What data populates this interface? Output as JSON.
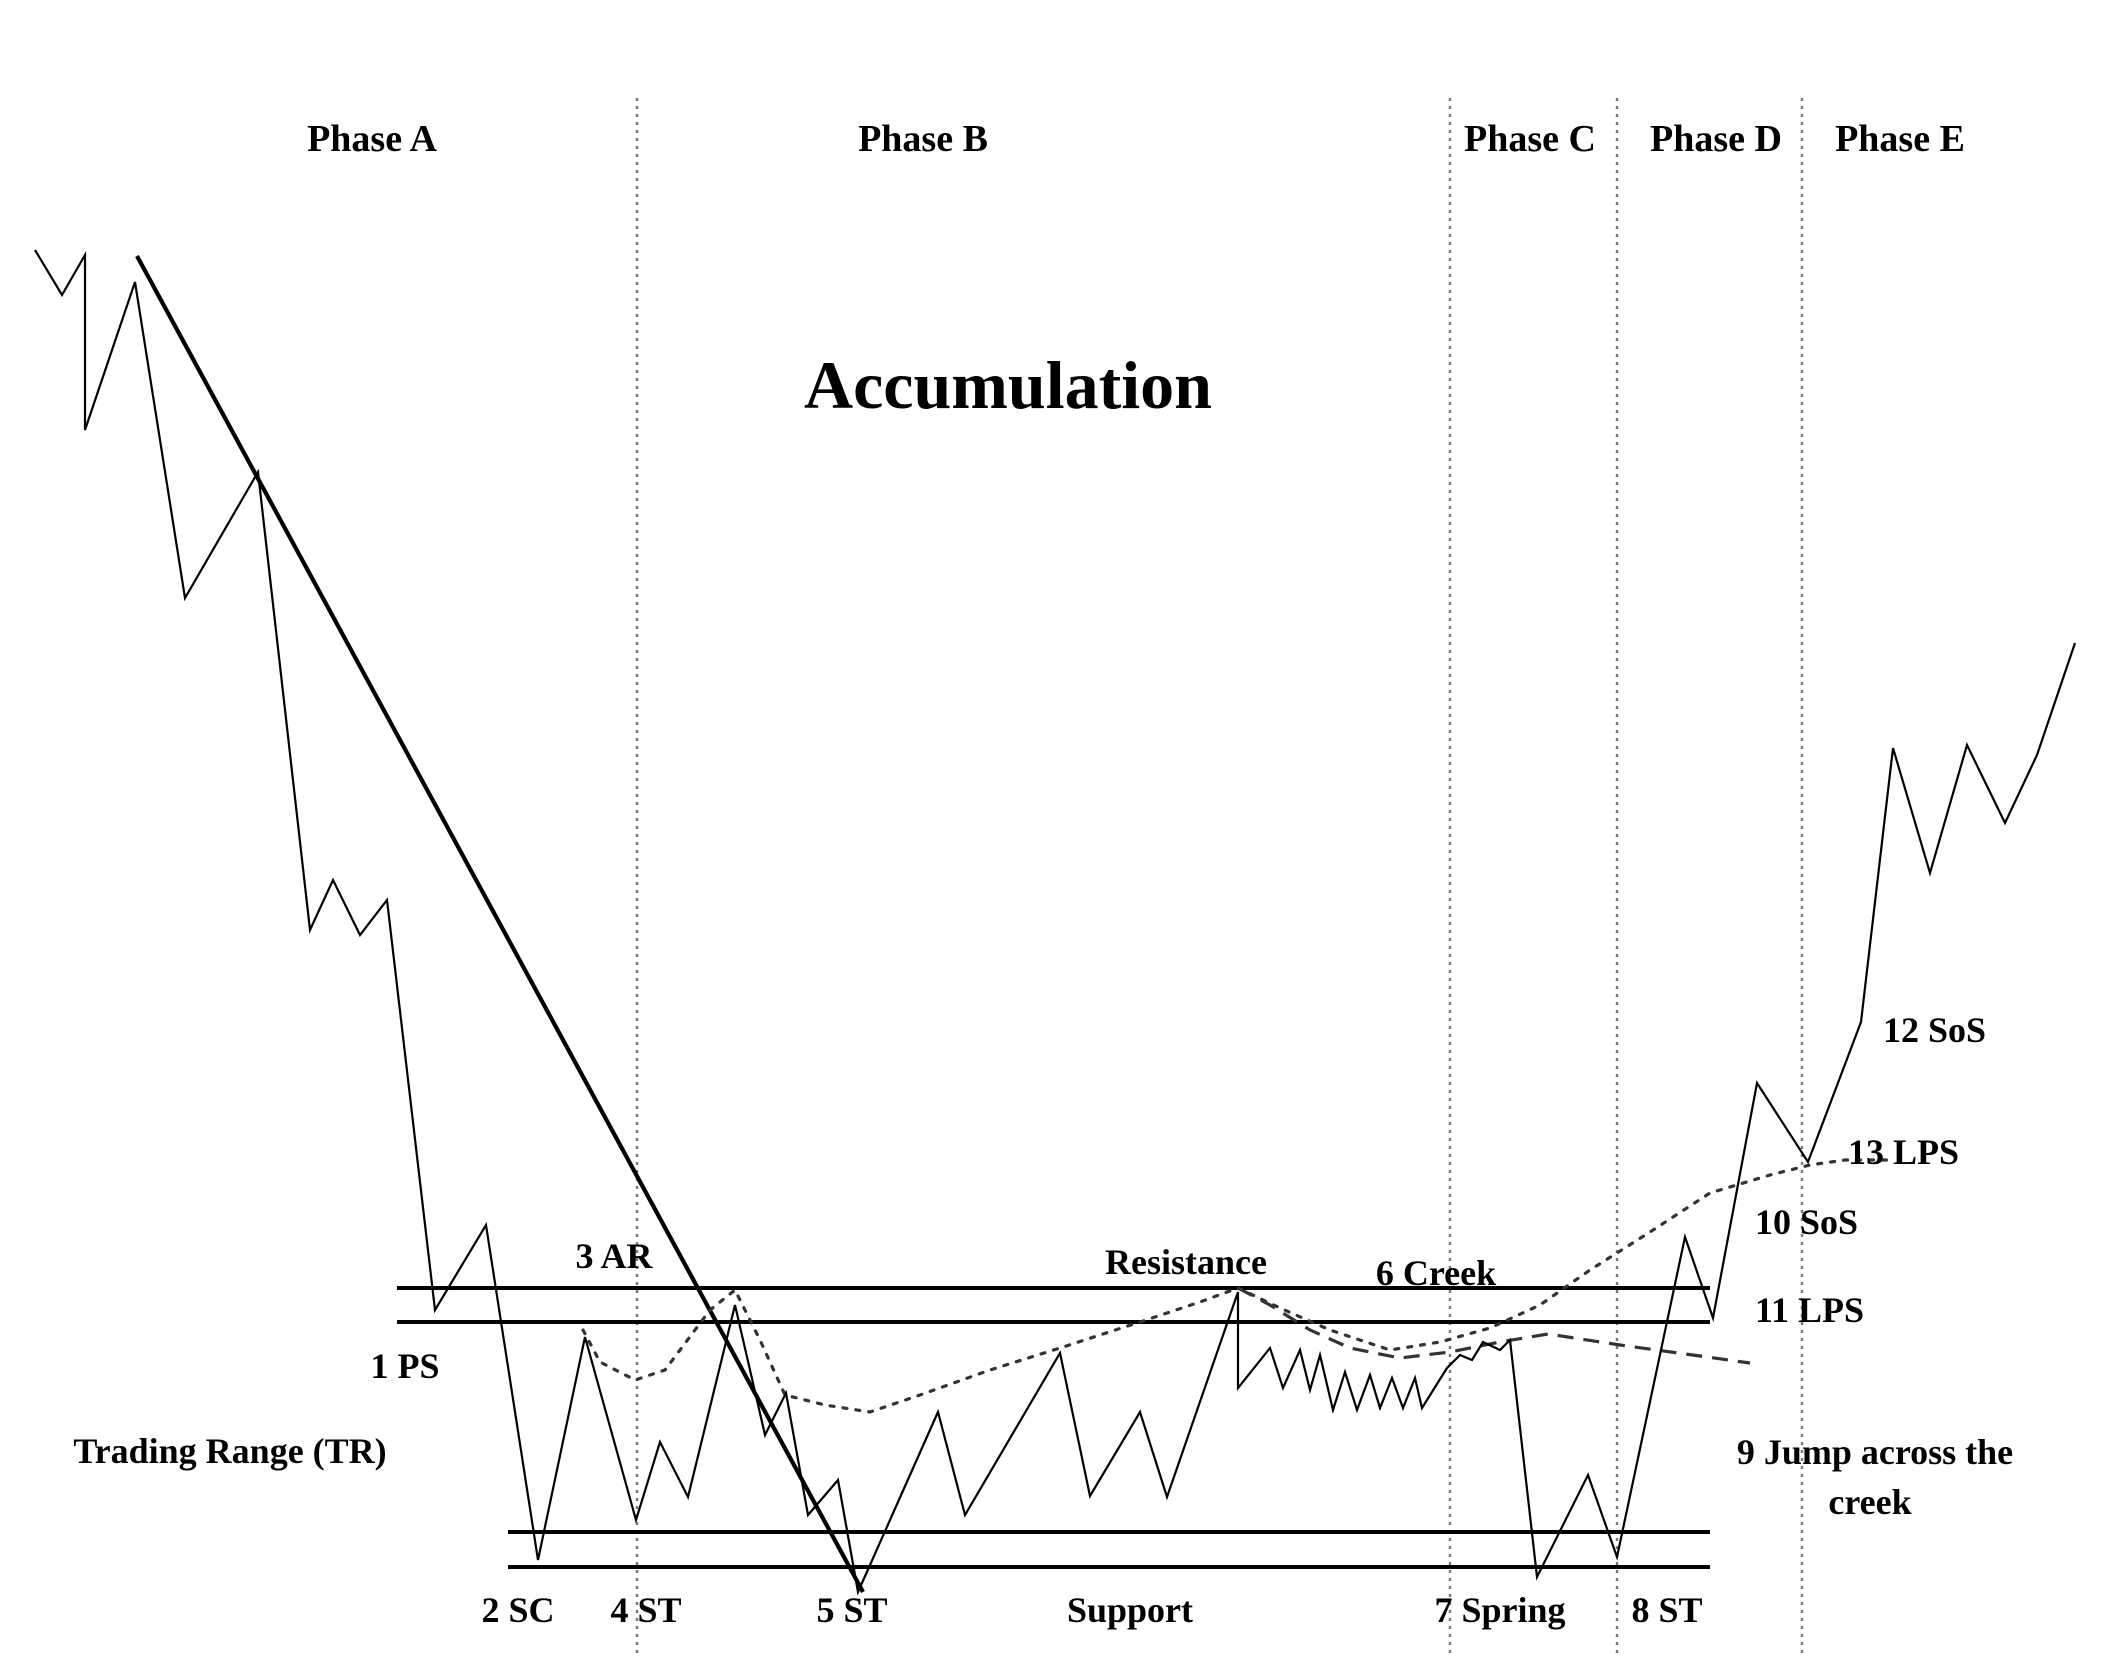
{
  "title": "Accumulation",
  "phases": [
    "Phase A",
    "Phase B",
    "Phase C",
    "Phase D",
    "Phase E"
  ],
  "labels": {
    "ps": "1 PS",
    "sc": "2 SC",
    "ar": "3 AR",
    "st4": "4 ST",
    "st5": "5 ST",
    "creek": "6 Creek",
    "spring": "7 Spring",
    "st8": "8 ST",
    "jump_line1": "9 Jump across the",
    "jump_line2": "creek",
    "sos10": "10 SoS",
    "lps11": "11 LPS",
    "sos12": "12 SoS",
    "lps13": "13 LPS",
    "resistance": "Resistance",
    "support": "Support",
    "trading_range": "Trading Range (TR)"
  },
  "colors": {
    "ink": "#000000",
    "divider": "#777777",
    "background": "#ffffff"
  }
}
